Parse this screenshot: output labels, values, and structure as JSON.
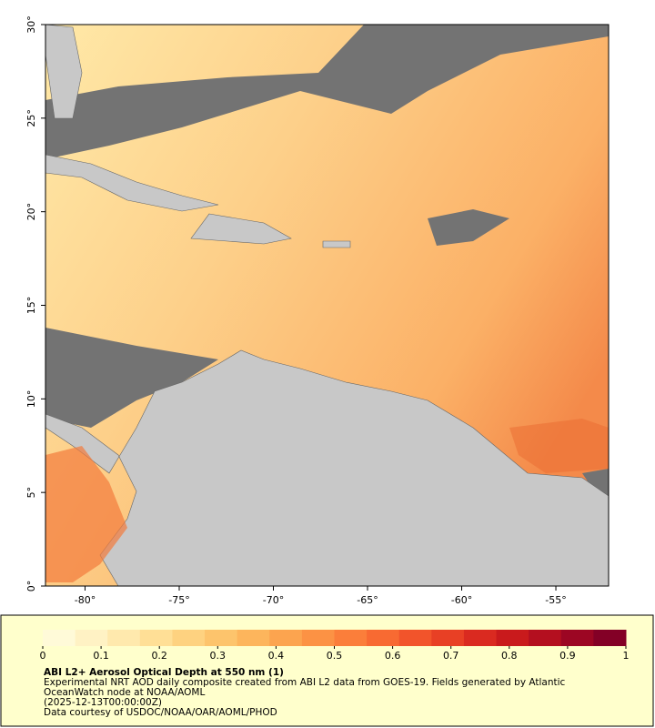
{
  "map": {
    "xlim": [
      -82.1,
      -52.2
    ],
    "ylim": [
      0,
      30
    ],
    "xticks": [
      {
        "value": -80,
        "label": "-80°"
      },
      {
        "value": -75,
        "label": "-75°"
      },
      {
        "value": -70,
        "label": "-70°"
      },
      {
        "value": -65,
        "label": "-65°"
      },
      {
        "value": -60,
        "label": "-60°"
      },
      {
        "value": -55,
        "label": "-55°"
      }
    ],
    "yticks": [
      {
        "value": 0,
        "label": "0°"
      },
      {
        "value": 5,
        "label": "5°"
      },
      {
        "value": 10,
        "label": "10°"
      },
      {
        "value": 15,
        "label": "15°"
      },
      {
        "value": 20,
        "label": "20°"
      },
      {
        "value": 25,
        "label": "25°"
      },
      {
        "value": 30,
        "label": "30°"
      }
    ]
  },
  "colorbar": {
    "lim": [
      0,
      1
    ],
    "ticks": [
      0,
      0.1,
      0.2,
      0.3,
      0.4,
      0.5,
      0.6,
      0.7,
      0.8,
      0.9,
      1
    ],
    "colors": [
      "#fffad8",
      "#fff2c4",
      "#ffe9ad",
      "#ffdf96",
      "#fed280",
      "#fdc46c",
      "#fdb55c",
      "#fca44f",
      "#fc9244",
      "#fb7e3a",
      "#f86a32",
      "#f2542b",
      "#e84025",
      "#da2a20",
      "#c91a1c",
      "#b40f1f",
      "#9c0623",
      "#830026"
    ]
  },
  "caption": {
    "title": "ABI L2+ Aerosol Optical Depth at 550 nm (1)",
    "lines": [
      "Experimental NRT AOD daily composite created from ABI L2 data from GOES-19. Fields generated by Atlantic",
      "OceanWatch node at NOAA/AOML",
      "(2025-12-13T00:00:00Z)",
      "Data courtesy of USDOC/NOAA/OAR/AOML/PHOD"
    ]
  }
}
